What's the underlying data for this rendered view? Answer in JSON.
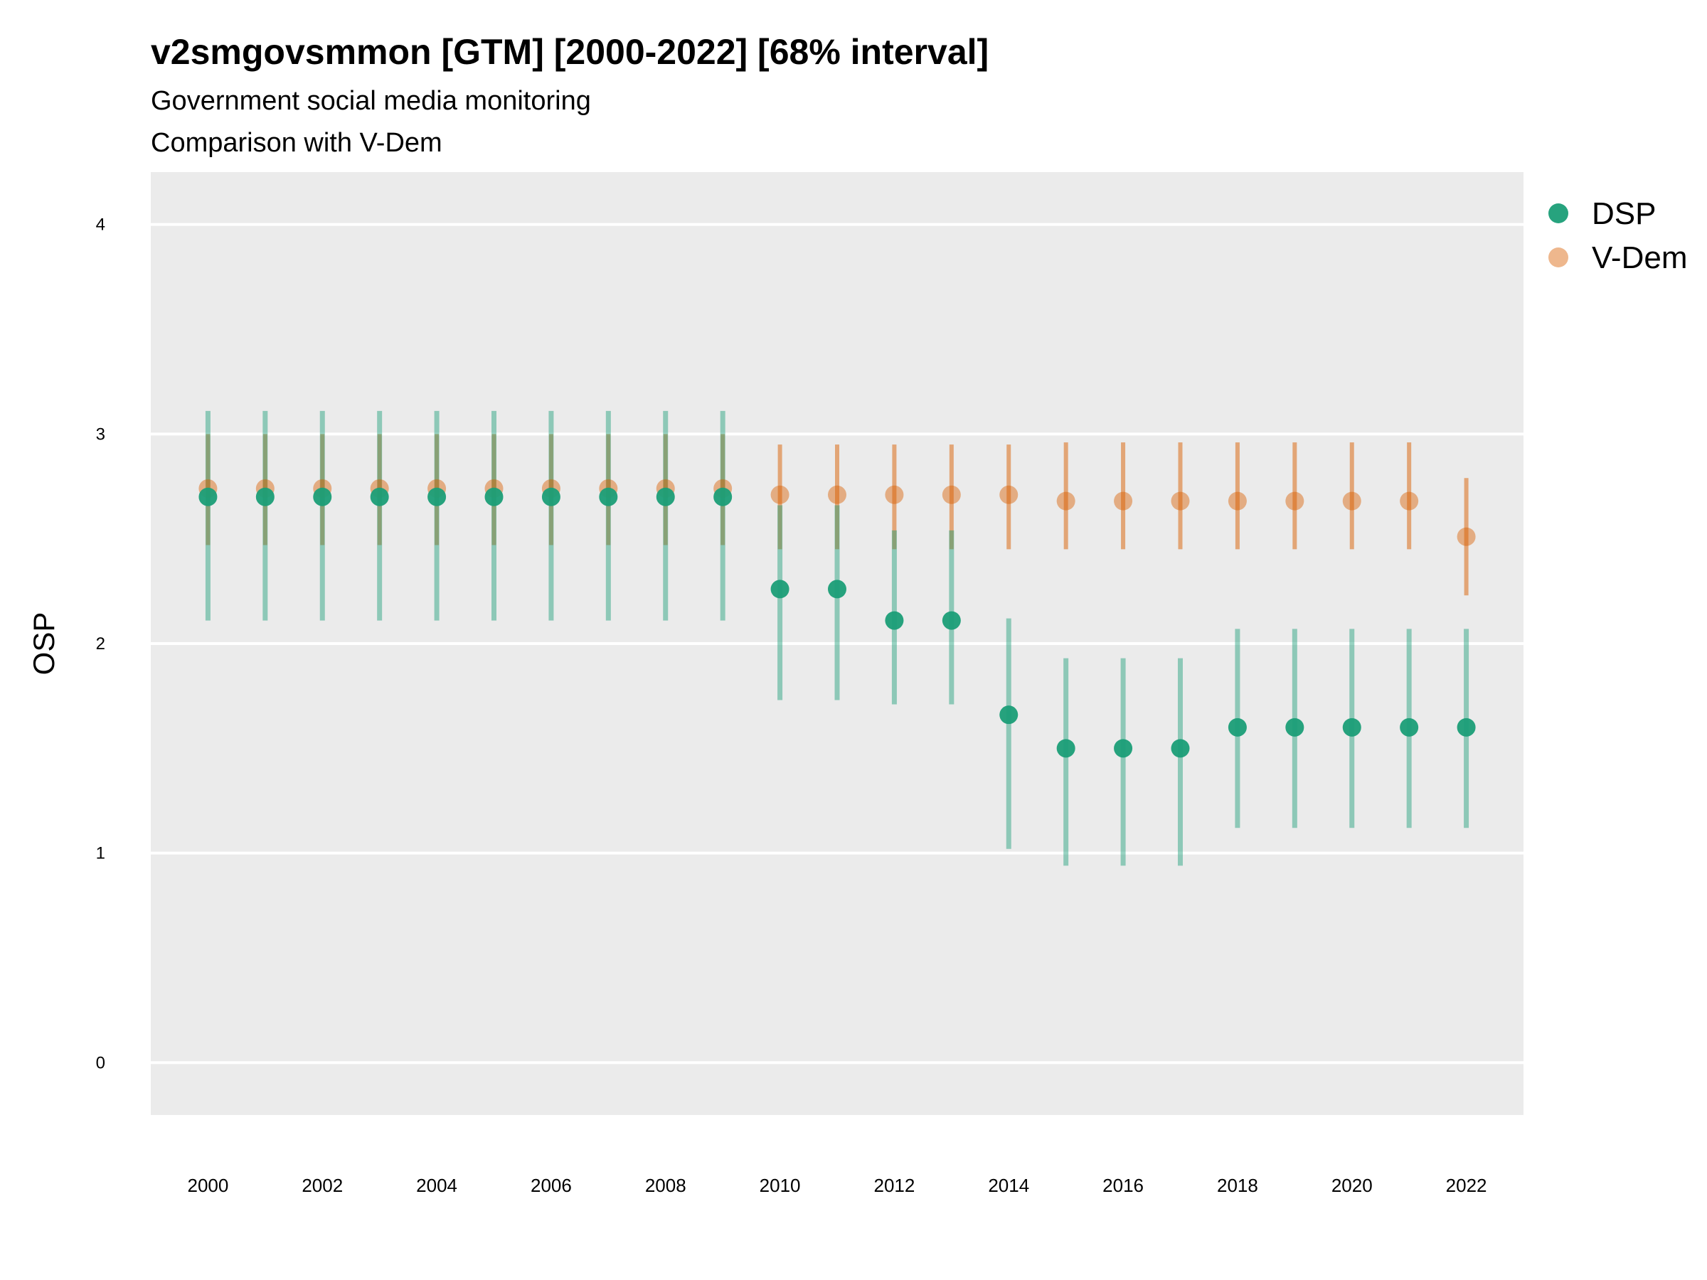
{
  "chart_data": {
    "type": "scatter",
    "title": "v2smgovsmmon [GTM] [2000-2022] [68% interval]",
    "subtitle": "Government social media monitoring",
    "caption": "Comparison with V-Dem",
    "xlabel": "",
    "ylabel": "OSP",
    "ylim": [
      -0.25,
      4.25
    ],
    "xlim": [
      1999,
      2023
    ],
    "yticks": [
      0,
      1,
      2,
      3,
      4
    ],
    "ytick_labels": [
      "0",
      "1",
      "2",
      "3",
      "4"
    ],
    "xticks": [
      2000,
      2002,
      2004,
      2006,
      2008,
      2010,
      2012,
      2014,
      2016,
      2018,
      2020,
      2022
    ],
    "xtick_labels": [
      "2000",
      "2002",
      "2004",
      "2006",
      "2008",
      "2010",
      "2012",
      "2014",
      "2016",
      "2018",
      "2020",
      "2022"
    ],
    "grid": true,
    "legend_position": "right",
    "series": [
      {
        "name": "DSP",
        "color": "#1b9e77",
        "x": [
          2000,
          2001,
          2002,
          2003,
          2004,
          2005,
          2006,
          2007,
          2008,
          2009,
          2010,
          2011,
          2012,
          2013,
          2014,
          2015,
          2016,
          2017,
          2018,
          2019,
          2020,
          2021,
          2022
        ],
        "values": [
          2.7,
          2.7,
          2.7,
          2.7,
          2.7,
          2.7,
          2.7,
          2.7,
          2.7,
          2.7,
          2.26,
          2.26,
          2.11,
          2.11,
          1.66,
          1.5,
          1.5,
          1.5,
          1.6,
          1.6,
          1.6,
          1.6,
          1.6
        ],
        "lower": [
          2.11,
          2.11,
          2.11,
          2.11,
          2.11,
          2.11,
          2.11,
          2.11,
          2.11,
          2.11,
          1.73,
          1.73,
          1.71,
          1.71,
          1.02,
          0.94,
          0.94,
          0.94,
          1.12,
          1.12,
          1.12,
          1.12,
          1.12
        ],
        "upper": [
          3.11,
          3.11,
          3.11,
          3.11,
          3.11,
          3.11,
          3.11,
          3.11,
          3.11,
          3.11,
          2.66,
          2.66,
          2.54,
          2.54,
          2.12,
          1.93,
          1.93,
          1.93,
          2.07,
          2.07,
          2.07,
          2.07,
          2.07
        ]
      },
      {
        "name": "V-Dem",
        "color": "#d95f02",
        "x": [
          2000,
          2001,
          2002,
          2003,
          2004,
          2005,
          2006,
          2007,
          2008,
          2009,
          2010,
          2011,
          2012,
          2013,
          2014,
          2015,
          2016,
          2017,
          2018,
          2019,
          2020,
          2021,
          2022
        ],
        "values": [
          2.74,
          2.74,
          2.74,
          2.74,
          2.74,
          2.74,
          2.74,
          2.74,
          2.74,
          2.74,
          2.71,
          2.71,
          2.71,
          2.71,
          2.71,
          2.68,
          2.68,
          2.68,
          2.68,
          2.68,
          2.68,
          2.68,
          2.51
        ],
        "lower": [
          2.47,
          2.47,
          2.47,
          2.47,
          2.47,
          2.47,
          2.47,
          2.47,
          2.47,
          2.47,
          2.45,
          2.45,
          2.45,
          2.45,
          2.45,
          2.45,
          2.45,
          2.45,
          2.45,
          2.45,
          2.45,
          2.45,
          2.23
        ],
        "upper": [
          3.0,
          3.0,
          3.0,
          3.0,
          3.0,
          3.0,
          3.0,
          3.0,
          3.0,
          3.0,
          2.95,
          2.95,
          2.95,
          2.95,
          2.95,
          2.96,
          2.96,
          2.96,
          2.96,
          2.96,
          2.96,
          2.96,
          2.79
        ]
      }
    ],
    "panel_background": "#ebebeb",
    "grid_color": "#ffffff"
  }
}
